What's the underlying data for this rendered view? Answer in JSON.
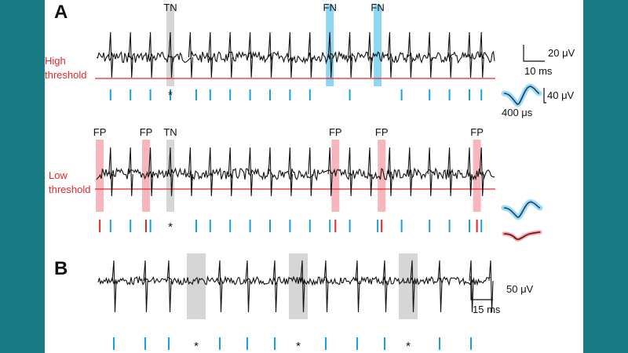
{
  "colors": {
    "background": "#197c84",
    "panel": "#ffffff",
    "trace": "#111111",
    "threshold": "#e8262a",
    "tick_blue": "#1aa0e0",
    "highlight_blue": "#8fd6f2",
    "highlight_red": "#f6b6bb",
    "highlight_gray": "#d6d6d6",
    "wave_blue": "#1aa0e0",
    "wave_red": "#e8262a"
  },
  "panel_labels": {
    "a": "A",
    "b": "B"
  },
  "threshold_labels": {
    "high_line1": "High",
    "high_line2": "threshold",
    "low_line1": "Low",
    "low_line2": "threshold"
  },
  "annotations": {
    "tn": "TN",
    "fn": "FN",
    "fp": "FP",
    "miss_marker": "*"
  },
  "scale_bars": {
    "a_vertical": "20 μV",
    "a_horizontal": "10 ms",
    "wave_vertical": "40 μV",
    "wave_horizontal": "400 μs",
    "b_vertical": "50 μV",
    "b_horizontal": "15 ms"
  },
  "chart_data": [
    {
      "type": "line",
      "panel": "A-high",
      "description_units": "ms",
      "duration_ms": 100,
      "threshold_label": "High threshold",
      "spike_times": [
        3.5,
        8.5,
        13.5,
        18.5,
        23.5,
        28.5,
        33.5,
        38.5,
        43.5,
        48.5,
        53.5,
        58.5,
        63.5,
        68.5,
        73.5,
        78.5,
        83.5,
        88.5,
        93.5,
        96.5
      ],
      "detected_times": [
        3.5,
        8.5,
        13.5,
        18.5,
        25.0,
        28.5,
        33.5,
        38.5,
        43.5,
        48.5,
        53.5,
        63.5,
        76.5,
        83.5,
        88.5,
        93.5,
        96.5
      ],
      "marker_times": [
        18.5
      ],
      "highlights": [
        {
          "label": "TN",
          "t": 18.5,
          "color": "gray"
        },
        {
          "label": "FN",
          "t": 58.5,
          "color": "blue"
        },
        {
          "label": "FN",
          "t": 70.5,
          "color": "blue"
        }
      ]
    },
    {
      "type": "line",
      "panel": "A-low",
      "duration_ms": 100,
      "threshold_label": "Low threshold",
      "spike_times": [
        3.5,
        8.5,
        13.5,
        18.5,
        23.5,
        28.5,
        33.5,
        38.5,
        43.5,
        48.5,
        53.5,
        58.5,
        63.5,
        68.5,
        73.5,
        78.5,
        83.5,
        88.5,
        93.5,
        96.5
      ],
      "detected_blue": [
        3.5,
        8.5,
        13.5,
        12.4,
        25.0,
        28.5,
        33.5,
        38.5,
        43.5,
        48.5,
        53.5,
        58.5,
        63.5,
        70.5,
        76.5,
        83.5,
        88.5,
        93.5,
        96.5
      ],
      "detected_red": [
        0.8,
        12.4,
        59.9,
        71.5,
        95.4
      ],
      "marker_times": [
        18.5
      ],
      "highlights": [
        {
          "label": "FP",
          "t": 0.8,
          "color": "red"
        },
        {
          "label": "FP",
          "t": 12.4,
          "color": "red"
        },
        {
          "label": "TN",
          "t": 18.5,
          "color": "gray"
        },
        {
          "label": "FP",
          "t": 59.9,
          "color": "red"
        },
        {
          "label": "FP",
          "t": 71.5,
          "color": "red"
        },
        {
          "label": "FP",
          "t": 95.4,
          "color": "red"
        }
      ]
    },
    {
      "type": "line",
      "panel": "B",
      "duration_ms": 100,
      "spike_times": [
        4,
        12,
        18,
        31,
        38,
        45,
        52,
        58,
        66,
        73,
        80,
        87,
        95,
        100
      ],
      "detected_times": [
        4,
        12,
        18,
        31,
        38,
        45,
        58,
        66,
        73,
        87,
        95
      ],
      "gap_times": [
        25,
        51,
        79
      ],
      "marker_times": [
        25,
        51,
        79
      ]
    }
  ]
}
